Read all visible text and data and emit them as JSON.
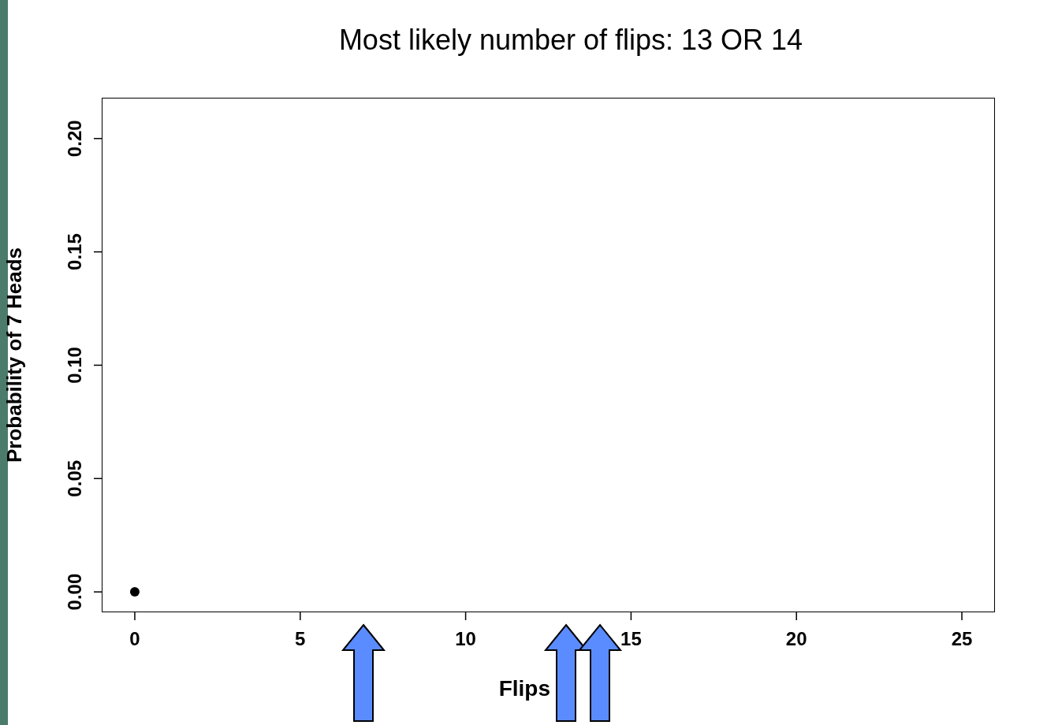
{
  "chart_data": {
    "type": "scatter",
    "title": "Most likely number of flips: 13 OR 14",
    "xlabel": "Flips",
    "ylabel": "Probability of 7 Heads",
    "x": [
      0
    ],
    "series": [
      {
        "color": "#000000",
        "values": [
          0
        ]
      }
    ],
    "xlim": [
      -1,
      26
    ],
    "xticks": [
      0,
      5,
      10,
      15,
      20,
      25
    ],
    "ylim": [
      -0.009,
      0.218
    ],
    "yticks": [
      {
        "value": 0,
        "label": "0.00"
      },
      {
        "value": 0.05,
        "label": "0.05"
      },
      {
        "value": 0.1,
        "label": "0.10"
      },
      {
        "value": 0.15,
        "label": "0.15"
      },
      {
        "value": 0.2,
        "label": "0.20"
      }
    ],
    "marker": "circle",
    "grid": false,
    "legend": false
  }
}
